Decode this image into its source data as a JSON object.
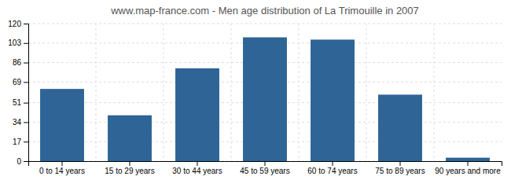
{
  "chart_data": {
    "type": "bar",
    "title": "www.map-france.com - Men age distribution of La Trimouille in 2007",
    "categories": [
      "0 to 14 years",
      "15 to 29 years",
      "30 to 44 years",
      "45 to 59 years",
      "60 to 74 years",
      "75 to 89 years",
      "90 years and more"
    ],
    "values": [
      63,
      40,
      81,
      108,
      106,
      58,
      3
    ],
    "color": "#2e6496",
    "ylim": [
      0,
      120
    ],
    "yticks": [
      0,
      17,
      34,
      51,
      69,
      86,
      103,
      120
    ],
    "grid": true
  }
}
